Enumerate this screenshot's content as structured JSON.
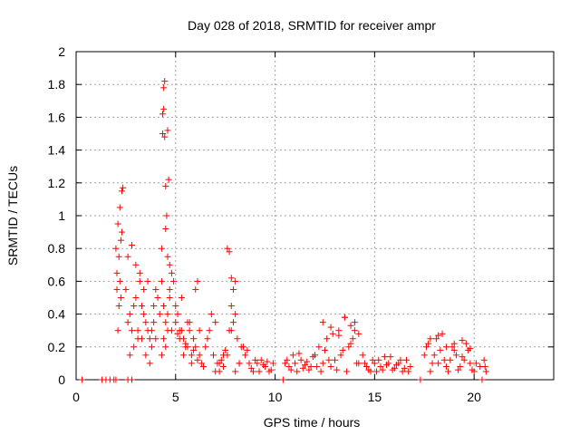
{
  "chart_data": {
    "type": "scatter",
    "title": "Day 028 of 2018, SRMTID for receiver ampr",
    "xlabel": "GPS time / hours",
    "ylabel": "SRMTID / TECUs",
    "xlim": [
      0,
      24
    ],
    "ylim": [
      0,
      2
    ],
    "xticks": [
      0,
      5,
      10,
      15,
      20
    ],
    "xtick_labels": [
      "0",
      "5",
      "10",
      "15",
      "20"
    ],
    "yticks": [
      0,
      0.2,
      0.4,
      0.6,
      0.8,
      1.0,
      1.2,
      1.4,
      1.6,
      1.8,
      2.0
    ],
    "ytick_labels": [
      "0",
      "0.2",
      "0.4",
      "0.6",
      "0.8",
      "1",
      "1.2",
      "1.4",
      "1.6",
      "1.8",
      "2"
    ],
    "grid": true,
    "marker": "+",
    "color": "#ff0000",
    "series": [
      {
        "name": "SRMTID",
        "x": [
          0.3,
          1.3,
          1.5,
          1.7,
          1.9,
          2.0,
          2.6,
          2.8,
          10.4,
          17.3,
          20.4,
          2.0,
          2.05,
          2.1,
          2.15,
          2.2,
          2.25,
          2.3,
          2.35,
          2.1,
          2.2,
          2.3,
          2.05,
          2.15,
          2.25,
          2.5,
          2.6,
          2.7,
          2.8,
          2.9,
          3.0,
          3.1,
          3.2,
          3.3,
          3.4,
          3.5,
          3.6,
          3.7,
          3.8,
          3.9,
          4.0,
          4.1,
          4.2,
          2.6,
          2.8,
          3.0,
          3.2,
          3.4,
          3.6,
          3.8,
          4.0,
          2.7,
          2.9,
          3.1,
          3.3,
          3.5,
          3.7,
          3.9,
          4.3,
          4.35,
          4.4,
          4.45,
          4.4,
          4.35,
          4.45,
          4.5,
          4.55,
          4.6,
          4.65,
          4.5,
          4.6,
          4.7,
          4.3,
          4.4,
          4.5,
          4.6,
          4.7,
          4.8,
          4.9,
          4.4,
          4.6,
          4.8,
          4.3,
          4.5,
          4.7,
          5.0,
          5.1,
          5.2,
          5.3,
          5.4,
          5.5,
          5.6,
          5.7,
          5.8,
          5.9,
          6.0,
          6.1,
          6.2,
          5.0,
          5.2,
          5.4,
          5.6,
          5.8,
          6.0,
          6.2,
          5.1,
          5.3,
          5.5,
          5.7,
          5.9,
          6.1,
          6.3,
          6.5,
          6.7,
          6.9,
          7.1,
          7.3,
          7.5,
          6.4,
          6.6,
          6.8,
          7.0,
          7.2,
          7.4,
          7.0,
          7.2,
          7.4,
          7.6,
          7.8,
          8.0,
          8.2,
          8.4,
          7.6,
          7.7,
          7.8,
          7.9,
          8.0,
          7.7,
          7.9,
          8.1,
          8.3,
          7.8,
          8.0,
          8.2,
          8.5,
          8.7,
          8.9,
          9.1,
          9.3,
          9.5,
          9.7,
          9.9,
          8.6,
          8.8,
          9.0,
          9.2,
          9.4,
          9.6,
          9.8,
          10.5,
          10.7,
          10.9,
          11.1,
          11.3,
          11.5,
          11.7,
          11.9,
          10.6,
          10.8,
          11.0,
          11.2,
          11.4,
          11.6,
          11.8,
          12.0,
          12.2,
          12.4,
          12.6,
          12.8,
          13.0,
          13.2,
          13.4,
          13.6,
          13.8,
          14.0,
          14.2,
          12.1,
          12.3,
          12.5,
          12.7,
          12.9,
          13.1,
          13.3,
          13.5,
          13.7,
          13.9,
          14.1,
          12.4,
          12.8,
          13.2,
          13.5,
          13.8,
          14.0,
          14.2,
          14.4,
          14.6,
          14.8,
          15.0,
          15.2,
          15.4,
          15.6,
          15.8,
          16.0,
          16.2,
          16.4,
          16.6,
          16.8,
          14.5,
          14.7,
          14.9,
          15.1,
          15.3,
          15.5,
          15.7,
          15.9,
          16.1,
          16.3,
          16.5,
          16.7,
          17.5,
          17.7,
          17.9,
          18.1,
          18.3,
          18.5,
          18.7,
          18.9,
          19.1,
          19.3,
          19.5,
          19.7,
          19.9,
          20.1,
          20.3,
          17.6,
          17.8,
          18.0,
          18.2,
          18.4,
          18.6,
          18.8,
          19.0,
          19.2,
          19.4,
          19.6,
          19.8,
          20.0,
          17.8,
          18.2,
          18.6,
          19.0,
          19.4,
          19.8,
          20.5,
          20.6,
          20.55
        ],
        "y": [
          0,
          0,
          0,
          0,
          0,
          0,
          0,
          0,
          0,
          0,
          0,
          0.8,
          0.55,
          0.3,
          0.45,
          0.6,
          0.85,
          1.15,
          1.17,
          0.95,
          1.05,
          0.9,
          0.65,
          0.75,
          0.5,
          0.55,
          0.35,
          0.4,
          0.3,
          0.45,
          0.5,
          0.25,
          0.6,
          0.45,
          0.4,
          0.35,
          0.3,
          0.25,
          0.2,
          0.45,
          0.55,
          0.5,
          0.4,
          0.75,
          0.82,
          0.7,
          0.65,
          0.55,
          0.6,
          0.3,
          0.25,
          0.15,
          0.2,
          0.3,
          0.25,
          0.15,
          0.1,
          0.35,
          0.8,
          1.5,
          1.65,
          1.82,
          1.78,
          1.62,
          1.48,
          1.18,
          1.0,
          1.52,
          1.22,
          0.92,
          0.75,
          0.7,
          0.6,
          0.45,
          0.35,
          0.3,
          0.55,
          0.65,
          0.6,
          0.25,
          0.4,
          0.3,
          0.15,
          0.2,
          0.5,
          0.45,
          0.4,
          0.3,
          0.5,
          0.25,
          0.2,
          0.35,
          0.3,
          0.15,
          0.25,
          0.55,
          0.6,
          0.3,
          0.35,
          0.25,
          0.15,
          0.2,
          0.1,
          0.2,
          0.15,
          0.28,
          0.3,
          0.22,
          0.35,
          0.18,
          0.12,
          0.1,
          0.2,
          0.3,
          0.15,
          0.1,
          0.12,
          0.18,
          0.08,
          0.25,
          0.4,
          0.35,
          0.05,
          0.15,
          0.05,
          0.1,
          0.08,
          0.15,
          0.3,
          0.05,
          0.1,
          0.2,
          0.8,
          0.78,
          0.62,
          0.55,
          0.4,
          0.3,
          0.35,
          0.25,
          0.2,
          0.45,
          0.6,
          0.1,
          0.15,
          0.1,
          0.05,
          0.1,
          0.12,
          0.08,
          0.05,
          0.1,
          0.18,
          0.07,
          0.12,
          0.05,
          0.09,
          0.11,
          0.06,
          0.1,
          0.08,
          0.15,
          0.05,
          0.12,
          0.09,
          0.06,
          0.14,
          0.12,
          0.06,
          0.1,
          0.16,
          0.07,
          0.11,
          0.08,
          0.15,
          0.2,
          0.1,
          0.25,
          0.08,
          0.12,
          0.3,
          0.18,
          0.05,
          0.22,
          0.35,
          0.1,
          0.08,
          0.05,
          0.18,
          0.12,
          0.28,
          0.06,
          0.15,
          0.38,
          0.2,
          0.25,
          0.1,
          0.35,
          0.32,
          0.27,
          0.38,
          0.33,
          0.3,
          0.28,
          0.15,
          0.08,
          0.05,
          0.1,
          0.12,
          0.06,
          0.09,
          0.14,
          0.07,
          0.1,
          0.05,
          0.12,
          0.08,
          0.1,
          0.06,
          0.12,
          0.05,
          0.08,
          0.14,
          0.1,
          0.06,
          0.09,
          0.12,
          0.07,
          0.05,
          0.15,
          0.22,
          0.1,
          0.25,
          0.18,
          0.12,
          0.05,
          0.2,
          0.15,
          0.08,
          0.12,
          0.18,
          0.06,
          0.1,
          0.08,
          0.2,
          0.05,
          0.15,
          0.1,
          0.28,
          0.08,
          0.12,
          0.18,
          0.06,
          0.14,
          0.22,
          0.1,
          0.05,
          0.25,
          0.27,
          0.2,
          0.22,
          0.24,
          0.19,
          0.12,
          0.05,
          0.08
        ]
      }
    ]
  }
}
